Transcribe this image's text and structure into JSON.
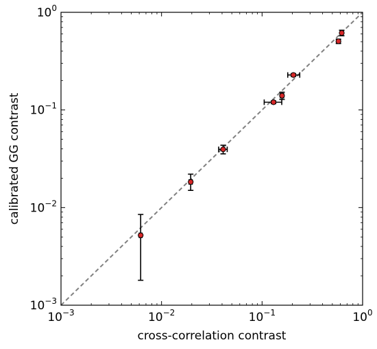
{
  "chart_data": {
    "type": "scatter",
    "title": "",
    "xlabel": "cross-correlation contrast",
    "ylabel": "calibrated GG contrast",
    "x_scale": "log",
    "y_scale": "log",
    "xlim": [
      0.001,
      1
    ],
    "ylim": [
      0.001,
      1
    ],
    "grid": false,
    "legend": "none",
    "x_ticks": [
      {
        "base": "10",
        "exp": "−3"
      },
      {
        "base": "10",
        "exp": "−2"
      },
      {
        "base": "10",
        "exp": "−1"
      },
      {
        "base": "10",
        "exp": "0"
      }
    ],
    "y_ticks": [
      {
        "base": "10",
        "exp": "−3"
      },
      {
        "base": "10",
        "exp": "−2"
      },
      {
        "base": "10",
        "exp": "−1"
      },
      {
        "base": "10",
        "exp": "0"
      }
    ],
    "reference_line": {
      "from": [
        0.001,
        0.001
      ],
      "to": [
        1,
        1
      ],
      "style": "dashed",
      "color": "#808080"
    },
    "marker_color": "#d62728",
    "marker_edge_color": "#000000",
    "points": [
      {
        "x": 0.0062,
        "y": 0.0052,
        "xerr": [
          0.0002,
          0.0002
        ],
        "yerr": [
          0.0034,
          0.0033
        ]
      },
      {
        "x": 0.0195,
        "y": 0.0183,
        "xerr": [
          0.0007,
          0.0007
        ],
        "yerr": [
          0.0033,
          0.0037
        ]
      },
      {
        "x": 0.041,
        "y": 0.0395,
        "xerr": [
          0.004,
          0.004
        ],
        "yerr": [
          0.004,
          0.004
        ]
      },
      {
        "x": 0.13,
        "y": 0.12,
        "xerr": [
          0.025,
          0.027
        ],
        "yerr": [
          0.004,
          0.004
        ]
      },
      {
        "x": 0.158,
        "y": 0.14,
        "xerr": [
          0.006,
          0.006
        ],
        "yerr": [
          0.012,
          0.012
        ]
      },
      {
        "x": 0.205,
        "y": 0.228,
        "xerr": [
          0.025,
          0.032
        ],
        "yerr": [
          0.008,
          0.008
        ]
      },
      {
        "x": 0.575,
        "y": 0.505,
        "xerr": [
          0.02,
          0.02
        ],
        "yerr": [
          0.025,
          0.025
        ]
      },
      {
        "x": 0.62,
        "y": 0.615,
        "xerr": [
          0.02,
          0.02
        ],
        "yerr": [
          0.04,
          0.04
        ]
      }
    ]
  }
}
